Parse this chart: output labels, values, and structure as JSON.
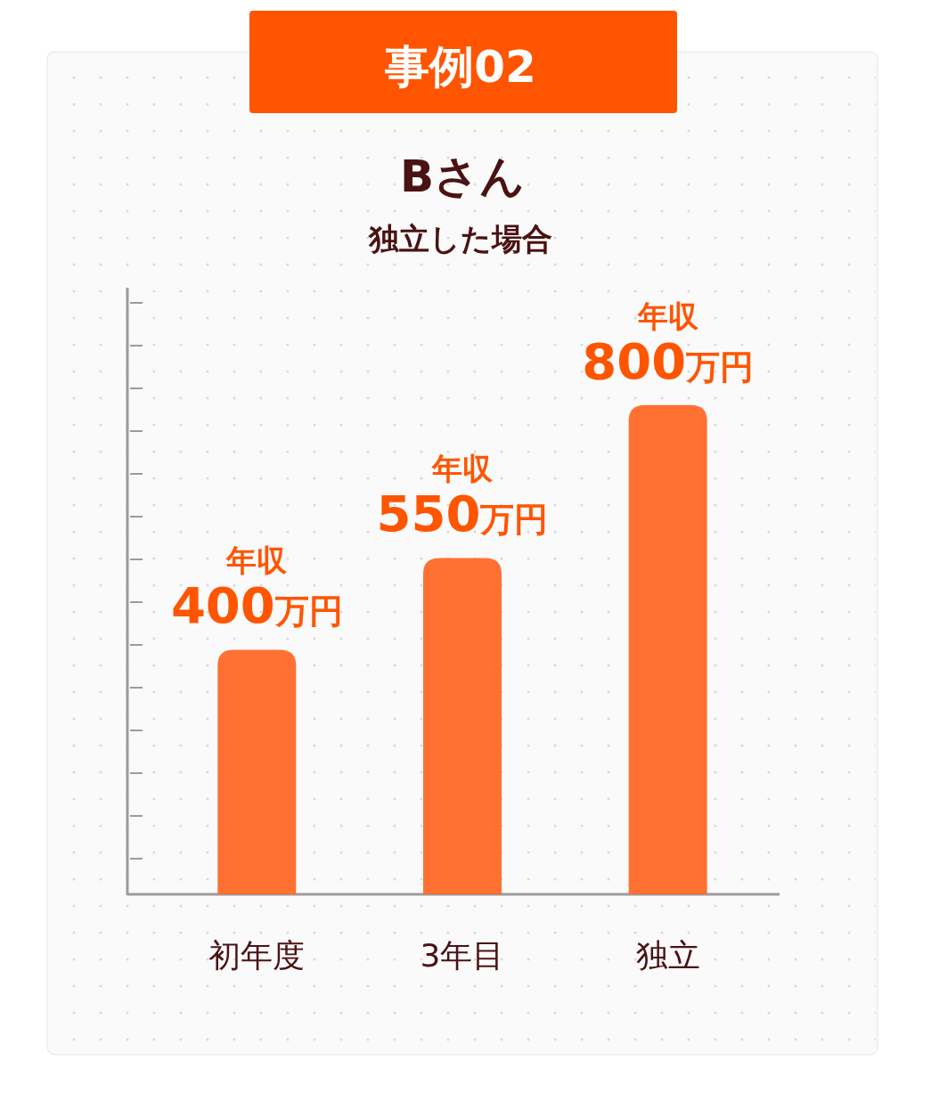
{
  "chart_data": {
    "type": "bar",
    "title": "Bさん",
    "subtitle": "独立した場合",
    "annotations": [
      "事例02"
    ],
    "categories": [
      "初年度",
      "3年目",
      "独立"
    ],
    "values": [
      400,
      550,
      800
    ],
    "value_labels": [
      "年収\n400万円",
      "年収\n550万円",
      "年収\n800万円"
    ],
    "color": "#ff7033"
  }
}
